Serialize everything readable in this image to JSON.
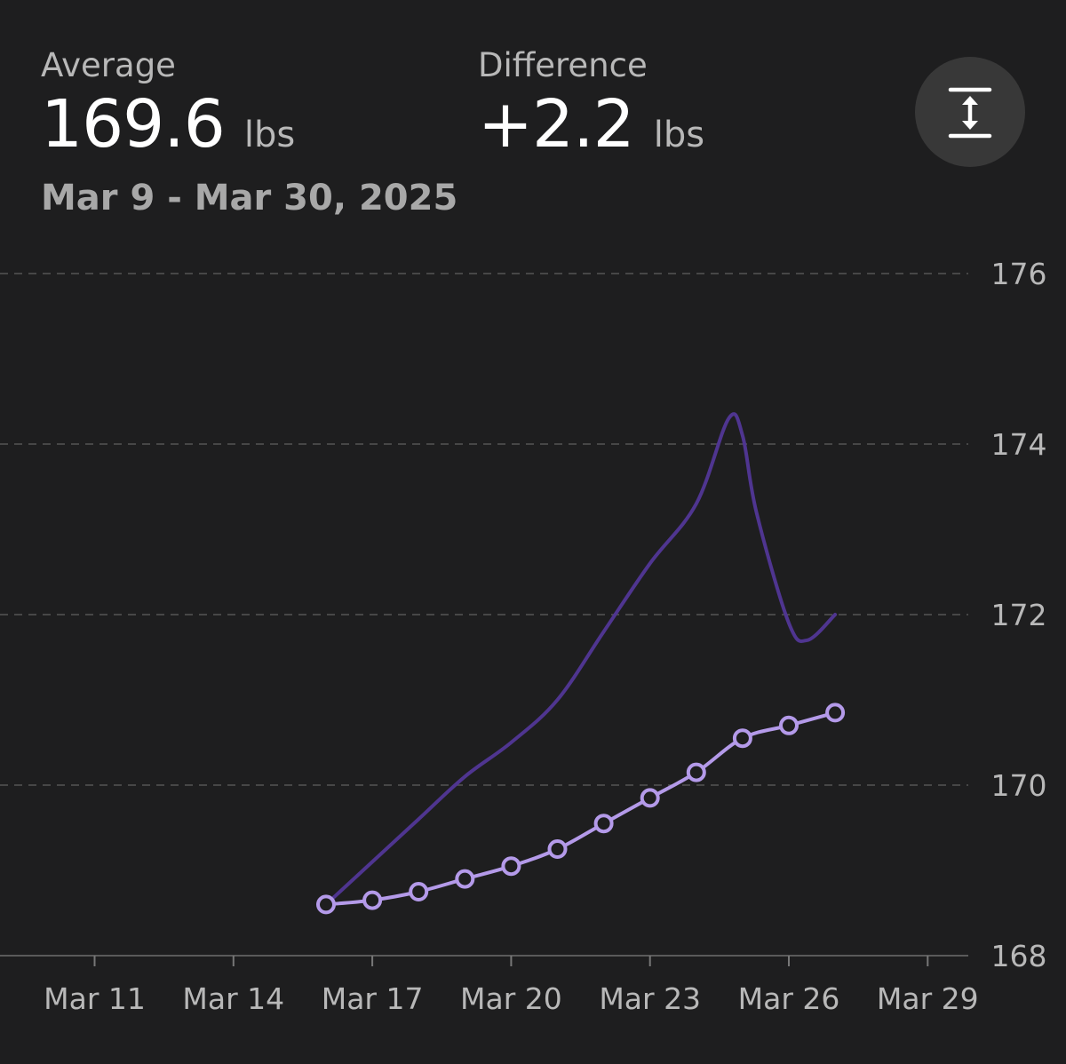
{
  "summary": {
    "average_label": "Average",
    "average_value": "169.6",
    "average_unit": "lbs",
    "difference_label": "Difference",
    "difference_value": "+2.2",
    "difference_unit": "lbs",
    "date_range": "Mar 9 - Mar 30, 2025"
  },
  "toolbar": {
    "scale_icon": "vertical-expand-icon"
  },
  "colors": {
    "background": "#1e1e1f",
    "raw_line": "#4f3590",
    "trend_line": "#b49ae9",
    "grid": "#555555",
    "tick_text": "#b8b8b8"
  },
  "chart_data": {
    "type": "line",
    "xlabel": "",
    "ylabel": "",
    "x_ticks": [
      "Mar 11",
      "Mar 14",
      "Mar 17",
      "Mar 20",
      "Mar 23",
      "Mar 26",
      "Mar 29"
    ],
    "y_ticks": [
      "168",
      "170",
      "172",
      "174",
      "176"
    ],
    "xlim": [
      9,
      30
    ],
    "ylim": [
      168,
      176
    ],
    "grid": true,
    "series": [
      {
        "style": "smooth-line",
        "x": [
          16,
          17,
          18,
          19,
          20,
          21,
          22,
          23,
          24,
          24.7,
          25,
          25.3,
          26,
          26.4,
          27
        ],
        "y": [
          168.6,
          169.1,
          169.6,
          170.1,
          170.5,
          171.0,
          171.8,
          172.6,
          173.3,
          174.3,
          174.1,
          173.2,
          171.9,
          171.7,
          172.0
        ]
      },
      {
        "style": "line-with-markers",
        "x": [
          16,
          17,
          18,
          19,
          20,
          21,
          22,
          23,
          24,
          25,
          26,
          27
        ],
        "y": [
          168.6,
          168.65,
          168.75,
          168.9,
          169.05,
          169.25,
          169.55,
          169.85,
          170.15,
          170.55,
          170.7,
          170.85
        ]
      }
    ]
  }
}
